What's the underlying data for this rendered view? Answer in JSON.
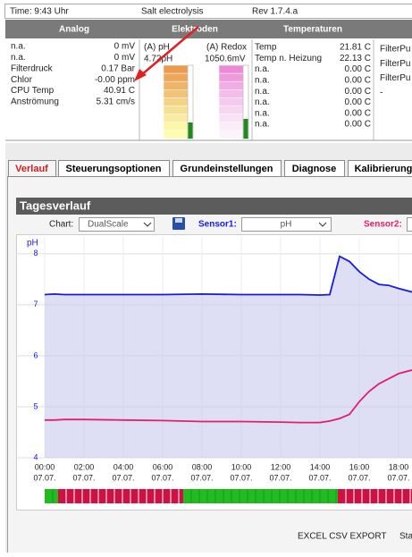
{
  "header": {
    "time": "Time: 9:43 Uhr",
    "title": "Salt electrolysis",
    "rev": "Rev 1.7.4.a"
  },
  "sections": [
    "Analog",
    "Elektroden",
    "Temperaturen"
  ],
  "analog": [
    [
      "n.a.",
      "0 mV"
    ],
    [
      "n.a.",
      "0 mV"
    ],
    [
      "Filterdruck",
      "0.17 Bar"
    ],
    [
      "Chlor",
      "-0.00 ppm"
    ],
    [
      "CPU Temp",
      "40.91 C"
    ],
    [
      "Anströmung",
      "5.31 cm/s"
    ]
  ],
  "electrodes": [
    {
      "label": "(A) pH",
      "value": "4.72pH"
    },
    {
      "label": "(A) Redox",
      "value": "1050.6mV"
    }
  ],
  "temperatures": [
    [
      "Temp",
      "21.81 C"
    ],
    [
      "Temp n. Heizung",
      "22.13 C"
    ],
    [
      "n.a.",
      "0.00 C"
    ],
    [
      "n.a.",
      "0.00 C"
    ],
    [
      "n.a.",
      "0.00 C"
    ],
    [
      "n.a.",
      "0.00 C"
    ],
    [
      "n.a.",
      "0.00 C"
    ],
    [
      "n.a.",
      "0.00 C"
    ]
  ],
  "outputs": [
    "FilterPu",
    "FilterPu",
    "FilterPu",
    "-"
  ],
  "tabs": [
    "Verlauf",
    "Steuerungsoptionen",
    "Grundeinstellungen",
    "Diagnose",
    "Kalibrierung"
  ],
  "panel_title": "Tagesverlauf",
  "controls": {
    "chart_label": "Chart:",
    "chart_value": "DualScale",
    "sensor1_label": "Sensor1:",
    "sensor1_value": "pH",
    "sensor2_label": "Sensor2:"
  },
  "chart_data": {
    "type": "line",
    "y_label": "pH",
    "xlim": [
      0,
      18.68
    ],
    "ylim": [
      4,
      8.33
    ],
    "xticks": [
      {
        "value": 0,
        "label": "00:00",
        "date": "07.07."
      },
      {
        "value": 2,
        "label": "02:00",
        "date": "07.07."
      },
      {
        "value": 4,
        "label": "04:00",
        "date": "07.07."
      },
      {
        "value": 6,
        "label": "06:00",
        "date": "07.07."
      },
      {
        "value": 8,
        "label": "08:00",
        "date": "07.07."
      },
      {
        "value": 10,
        "label": "10:00",
        "date": "07.07."
      },
      {
        "value": 12,
        "label": "12:00",
        "date": "07.07."
      },
      {
        "value": 14,
        "label": "14:00",
        "date": "07.07."
      },
      {
        "value": 16,
        "label": "16:00",
        "date": "07.07."
      },
      {
        "value": 18,
        "label": "18:00",
        "date": "07.07."
      }
    ],
    "yticks": [
      4,
      5,
      6,
      7,
      8
    ],
    "x": [
      0,
      0.5,
      1,
      2,
      4,
      6,
      8,
      10,
      12,
      13,
      14,
      14.5,
      15,
      15.5,
      16,
      16.5,
      17,
      17.5,
      18,
      18.68
    ],
    "series": [
      {
        "color": "#1a1ae6",
        "values": [
          7.2,
          7.21,
          7.2,
          7.2,
          7.2,
          7.2,
          7.21,
          7.2,
          7.2,
          7.2,
          7.19,
          7.2,
          7.95,
          7.85,
          7.65,
          7.5,
          7.4,
          7.38,
          7.32,
          7.25
        ]
      },
      {
        "color": "#e0206a",
        "values": [
          4.74,
          4.74,
          4.75,
          4.75,
          4.74,
          4.73,
          4.71,
          4.71,
          4.7,
          4.69,
          4.69,
          4.72,
          4.77,
          4.85,
          5.1,
          5.3,
          5.45,
          5.55,
          5.65,
          5.72
        ]
      }
    ]
  },
  "footer": [
    "EXCEL CSV EXPORT",
    "Sta"
  ]
}
